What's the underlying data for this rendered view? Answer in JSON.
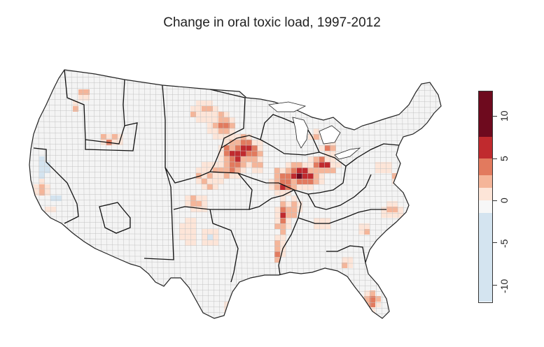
{
  "title": "Change in oral toxic load, 1997-2012",
  "legend": {
    "bins": [
      {
        "from": -12,
        "to": -1.5,
        "color": "#d4e4f0"
      },
      {
        "from": -1.5,
        "to": 0,
        "color": "#f7f7f7"
      },
      {
        "from": 0,
        "to": 1.5,
        "color": "#fde5d8"
      },
      {
        "from": 1.5,
        "to": 3,
        "color": "#f5b599"
      },
      {
        "from": 3,
        "to": 5,
        "color": "#e27a5e"
      },
      {
        "from": 5,
        "to": 7.5,
        "color": "#c02a2e"
      },
      {
        "from": 7.5,
        "to": 13,
        "color": "#6e0a1e"
      }
    ],
    "range": [
      -12,
      13
    ],
    "ticks": [
      "10",
      "5",
      "0",
      "-5",
      "-10"
    ]
  },
  "colors": {
    "county_fill": "#f4f4f4",
    "county_border": "#b8b8b8",
    "region_border": "#111111",
    "no_change": "#f7f7f7"
  },
  "map": {
    "projection": "contiguous United States, county level",
    "hotspots": [
      {
        "area": "Northern Plains / Minnesota-Iowa",
        "level": "very high"
      },
      {
        "area": "Illinois-Indiana-Ohio corn belt",
        "level": "very high"
      },
      {
        "area": "Lower Mississippi valley",
        "level": "high"
      },
      {
        "area": "Southern Florida",
        "level": "high"
      },
      {
        "area": "Central California",
        "level": "decrease"
      }
    ]
  }
}
